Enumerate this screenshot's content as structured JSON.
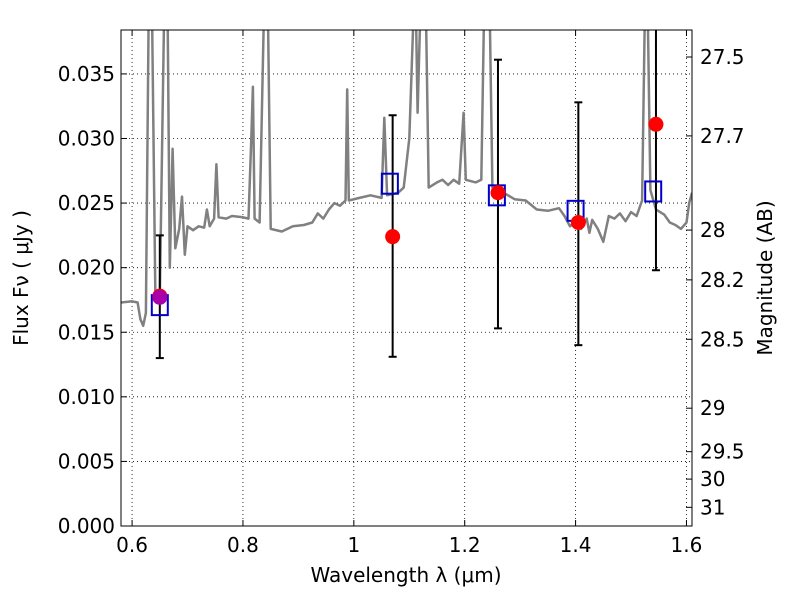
{
  "chart_data": {
    "type": "scatter",
    "xlabel": "Wavelength  λ (μm)",
    "ylabel": "Flux  Fν  ( μJy )",
    "y2label": "Magnitude (AB)",
    "xlim": [
      0.58,
      1.61
    ],
    "ylim": [
      0.0,
      0.0384
    ],
    "grid": true,
    "x_ticks": [
      {
        "value": 0.6,
        "label": "0.6"
      },
      {
        "value": 0.8,
        "label": "0.8"
      },
      {
        "value": 1.0,
        "label": "1"
      },
      {
        "value": 1.2,
        "label": "1.2"
      },
      {
        "value": 1.4,
        "label": "1.4"
      },
      {
        "value": 1.6,
        "label": "1.6"
      }
    ],
    "y_ticks": [
      {
        "value": 0.0,
        "label": "0.000"
      },
      {
        "value": 0.005,
        "label": "0.005"
      },
      {
        "value": 0.01,
        "label": "0.010"
      },
      {
        "value": 0.015,
        "label": "0.015"
      },
      {
        "value": 0.02,
        "label": "0.020"
      },
      {
        "value": 0.025,
        "label": "0.025"
      },
      {
        "value": 0.03,
        "label": "0.030"
      },
      {
        "value": 0.035,
        "label": "0.035"
      }
    ],
    "y2_ticks": [
      {
        "value": 27.5,
        "label": "27.5"
      },
      {
        "value": 27.7,
        "label": "27.7"
      },
      {
        "value": 28.0,
        "label": "28"
      },
      {
        "value": 28.2,
        "label": "28.2"
      },
      {
        "value": 28.5,
        "label": "28.5"
      },
      {
        "value": 29.0,
        "label": "29"
      },
      {
        "value": 29.5,
        "label": "29.5"
      },
      {
        "value": 30.0,
        "label": "30"
      },
      {
        "value": 31.0,
        "label": "31"
      }
    ],
    "model_spectrum": {
      "color": "#808080",
      "points": [
        [
          0.58,
          0.0173
        ],
        [
          0.6,
          0.0174
        ],
        [
          0.61,
          0.0173
        ],
        [
          0.615,
          0.016
        ],
        [
          0.62,
          0.0155
        ],
        [
          0.625,
          0.0165
        ],
        [
          0.63,
          0.04
        ],
        [
          0.636,
          0.04
        ],
        [
          0.642,
          0.0175
        ],
        [
          0.65,
          0.0178
        ],
        [
          0.658,
          0.04
        ],
        [
          0.664,
          0.04
        ],
        [
          0.668,
          0.02
        ],
        [
          0.673,
          0.0292
        ],
        [
          0.678,
          0.0215
        ],
        [
          0.685,
          0.023
        ],
        [
          0.69,
          0.0255
        ],
        [
          0.695,
          0.021
        ],
        [
          0.7,
          0.0232
        ],
        [
          0.71,
          0.0229
        ],
        [
          0.72,
          0.0232
        ],
        [
          0.73,
          0.0231
        ],
        [
          0.735,
          0.0245
        ],
        [
          0.74,
          0.0232
        ],
        [
          0.748,
          0.0238
        ],
        [
          0.752,
          0.028
        ],
        [
          0.756,
          0.0239
        ],
        [
          0.77,
          0.0238
        ],
        [
          0.78,
          0.024
        ],
        [
          0.8,
          0.0239
        ],
        [
          0.81,
          0.0238
        ],
        [
          0.815,
          0.03
        ],
        [
          0.818,
          0.034
        ],
        [
          0.821,
          0.0238
        ],
        [
          0.83,
          0.0235
        ],
        [
          0.838,
          0.04
        ],
        [
          0.845,
          0.04
        ],
        [
          0.85,
          0.023
        ],
        [
          0.87,
          0.0228
        ],
        [
          0.89,
          0.0232
        ],
        [
          0.91,
          0.0233
        ],
        [
          0.925,
          0.0235
        ],
        [
          0.935,
          0.0242
        ],
        [
          0.945,
          0.0238
        ],
        [
          0.955,
          0.0245
        ],
        [
          0.965,
          0.025
        ],
        [
          0.975,
          0.0248
        ],
        [
          0.985,
          0.0252
        ],
        [
          0.988,
          0.0338
        ],
        [
          0.991,
          0.0252
        ],
        [
          1.01,
          0.0254
        ],
        [
          1.03,
          0.0256
        ],
        [
          1.05,
          0.0254
        ],
        [
          1.055,
          0.0316
        ],
        [
          1.06,
          0.0256
        ],
        [
          1.08,
          0.0258
        ],
        [
          1.09,
          0.0262
        ],
        [
          1.1,
          0.03
        ],
        [
          1.108,
          0.04
        ],
        [
          1.112,
          0.04
        ],
        [
          1.115,
          0.032
        ],
        [
          1.12,
          0.04
        ],
        [
          1.13,
          0.04
        ],
        [
          1.135,
          0.0262
        ],
        [
          1.15,
          0.0266
        ],
        [
          1.16,
          0.0268
        ],
        [
          1.17,
          0.0264
        ],
        [
          1.18,
          0.0268
        ],
        [
          1.19,
          0.0265
        ],
        [
          1.198,
          0.032
        ],
        [
          1.202,
          0.0268
        ],
        [
          1.22,
          0.0266
        ],
        [
          1.23,
          0.0268
        ],
        [
          1.235,
          0.04
        ],
        [
          1.245,
          0.04
        ],
        [
          1.25,
          0.0262
        ],
        [
          1.27,
          0.0258
        ],
        [
          1.29,
          0.0253
        ],
        [
          1.31,
          0.0252
        ],
        [
          1.33,
          0.0245
        ],
        [
          1.35,
          0.0244
        ],
        [
          1.37,
          0.0246
        ],
        [
          1.38,
          0.024
        ],
        [
          1.39,
          0.0232
        ],
        [
          1.4,
          0.0236
        ],
        [
          1.41,
          0.023
        ],
        [
          1.42,
          0.0238
        ],
        [
          1.425,
          0.0227
        ],
        [
          1.43,
          0.0237
        ],
        [
          1.44,
          0.023
        ],
        [
          1.45,
          0.022
        ],
        [
          1.46,
          0.024
        ],
        [
          1.47,
          0.0238
        ],
        [
          1.48,
          0.0242
        ],
        [
          1.49,
          0.0236
        ],
        [
          1.5,
          0.0243
        ],
        [
          1.51,
          0.024
        ],
        [
          1.52,
          0.0252
        ],
        [
          1.525,
          0.04
        ],
        [
          1.53,
          0.04
        ],
        [
          1.535,
          0.026
        ],
        [
          1.545,
          0.0245
        ],
        [
          1.56,
          0.0241
        ],
        [
          1.57,
          0.0235
        ],
        [
          1.58,
          0.0233
        ],
        [
          1.59,
          0.023
        ],
        [
          1.6,
          0.0235
        ],
        [
          1.605,
          0.025
        ],
        [
          1.61,
          0.0258
        ]
      ]
    },
    "series": [
      {
        "marker": "circle",
        "color": "#ff0000",
        "points": [
          {
            "x": 0.65,
            "y": 0.0178,
            "yerr_low": 0.013,
            "yerr_high": 0.0225
          },
          {
            "x": 1.07,
            "y": 0.0224,
            "yerr_low": 0.0131,
            "yerr_high": 0.0318
          },
          {
            "x": 1.26,
            "y": 0.0258,
            "yerr_low": 0.0153,
            "yerr_high": 0.0361
          },
          {
            "x": 1.405,
            "y": 0.0235,
            "yerr_low": 0.014,
            "yerr_high": 0.0328
          },
          {
            "x": 1.545,
            "y": 0.0311,
            "yerr_low": 0.0198,
            "yerr_high": 0.04
          }
        ]
      },
      {
        "marker": "square",
        "color": "#0000cc",
        "points": [
          {
            "x": 0.65,
            "y": 0.0171
          },
          {
            "x": 1.065,
            "y": 0.0265
          },
          {
            "x": 1.258,
            "y": 0.0256
          },
          {
            "x": 1.4,
            "y": 0.0244
          },
          {
            "x": 1.54,
            "y": 0.0259
          }
        ]
      }
    ],
    "overlap_marker": {
      "x": 0.65,
      "y": 0.0177,
      "color": "#aa00aa"
    }
  }
}
